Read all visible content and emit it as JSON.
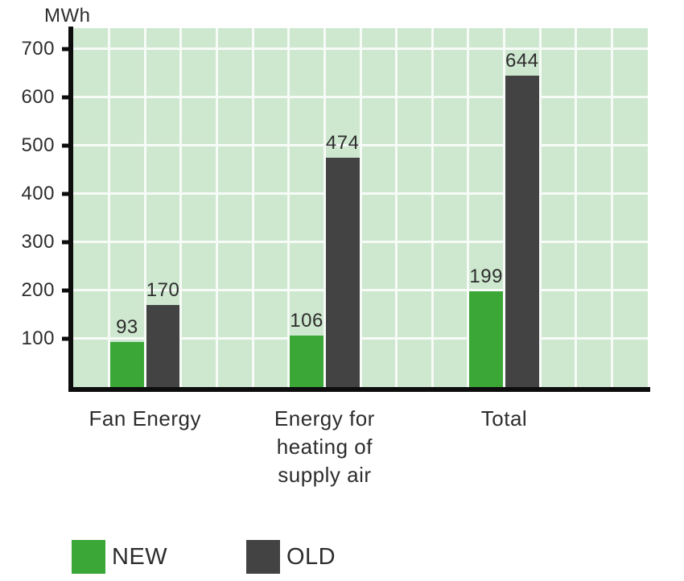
{
  "chart": {
    "unit_label": "MWh"
  },
  "chart_data": {
    "type": "bar",
    "title": "",
    "xlabel": "",
    "ylabel": "MWh",
    "categories": [
      "Fan Energy",
      "Energy for heating of supply air",
      "Total"
    ],
    "series": [
      {
        "name": "NEW",
        "color": "#3aa737",
        "values": [
          93,
          106,
          199
        ]
      },
      {
        "name": "OLD",
        "color": "#434343",
        "values": [
          170,
          474,
          644
        ]
      }
    ],
    "y_ticks": [
      100,
      200,
      300,
      400,
      500,
      600,
      700
    ],
    "ylim": [
      0,
      743
    ],
    "grid": true,
    "legend_position": "bottom",
    "colors": {
      "plot_background": "#cee7cf",
      "gridline": "#f7fbf7",
      "axis": "#0d0d0d",
      "text": "#2d2d2d"
    }
  }
}
